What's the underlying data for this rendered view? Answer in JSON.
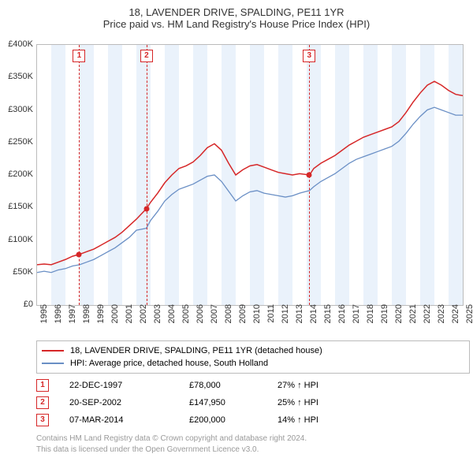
{
  "title": {
    "line1": "18, LAVENDER DRIVE, SPALDING, PE11 1YR",
    "line2": "Price paid vs. HM Land Registry's House Price Index (HPI)",
    "fontsize": 13,
    "color": "#333333"
  },
  "chart": {
    "type": "line",
    "background_color": "#ffffff",
    "plot_border_color": "#bbbbbb",
    "band_color": "#eaf2fb",
    "x": {
      "min": 1995,
      "max": 2025,
      "ticks": [
        1995,
        1996,
        1997,
        1998,
        1999,
        2000,
        2001,
        2002,
        2003,
        2004,
        2005,
        2006,
        2007,
        2008,
        2009,
        2010,
        2011,
        2012,
        2013,
        2014,
        2015,
        2016,
        2017,
        2018,
        2019,
        2020,
        2021,
        2022,
        2023,
        2024,
        2025
      ],
      "label_fontsize": 11
    },
    "y": {
      "min": 0,
      "max": 400000,
      "ticks": [
        0,
        50000,
        100000,
        150000,
        200000,
        250000,
        300000,
        350000,
        400000
      ],
      "tick_labels": [
        "£0",
        "£50K",
        "£100K",
        "£150K",
        "£200K",
        "£250K",
        "£300K",
        "£350K",
        "£400K"
      ],
      "label_fontsize": 11
    },
    "series": [
      {
        "name": "18, LAVENDER DRIVE, SPALDING, PE11 1YR (detached house)",
        "color": "#d62728",
        "line_width": 1.5,
        "data": [
          [
            1995,
            62000
          ],
          [
            1995.5,
            63000
          ],
          [
            1996,
            62000
          ],
          [
            1996.5,
            66000
          ],
          [
            1997,
            70000
          ],
          [
            1997.5,
            75000
          ],
          [
            1998,
            78000
          ],
          [
            1998.5,
            82000
          ],
          [
            1999,
            86000
          ],
          [
            1999.5,
            92000
          ],
          [
            2000,
            98000
          ],
          [
            2000.5,
            104000
          ],
          [
            2001,
            112000
          ],
          [
            2001.5,
            122000
          ],
          [
            2002,
            132000
          ],
          [
            2002.7,
            147950
          ],
          [
            2003,
            158000
          ],
          [
            2003.5,
            172000
          ],
          [
            2004,
            188000
          ],
          [
            2004.5,
            200000
          ],
          [
            2005,
            210000
          ],
          [
            2005.5,
            214000
          ],
          [
            2006,
            220000
          ],
          [
            2006.5,
            230000
          ],
          [
            2007,
            242000
          ],
          [
            2007.5,
            248000
          ],
          [
            2008,
            238000
          ],
          [
            2008.5,
            218000
          ],
          [
            2009,
            200000
          ],
          [
            2009.5,
            208000
          ],
          [
            2010,
            214000
          ],
          [
            2010.5,
            216000
          ],
          [
            2011,
            212000
          ],
          [
            2011.5,
            208000
          ],
          [
            2012,
            204000
          ],
          [
            2012.5,
            202000
          ],
          [
            2013,
            200000
          ],
          [
            2013.5,
            202000
          ],
          [
            2014.2,
            200000
          ],
          [
            2014.5,
            210000
          ],
          [
            2015,
            218000
          ],
          [
            2015.5,
            224000
          ],
          [
            2016,
            230000
          ],
          [
            2016.5,
            238000
          ],
          [
            2017,
            246000
          ],
          [
            2017.5,
            252000
          ],
          [
            2018,
            258000
          ],
          [
            2018.5,
            262000
          ],
          [
            2019,
            266000
          ],
          [
            2019.5,
            270000
          ],
          [
            2020,
            274000
          ],
          [
            2020.5,
            282000
          ],
          [
            2021,
            296000
          ],
          [
            2021.5,
            312000
          ],
          [
            2022,
            326000
          ],
          [
            2022.5,
            338000
          ],
          [
            2023,
            344000
          ],
          [
            2023.5,
            338000
          ],
          [
            2024,
            330000
          ],
          [
            2024.5,
            324000
          ],
          [
            2025,
            322000
          ]
        ]
      },
      {
        "name": "HPI: Average price, detached house, South Holland",
        "color": "#6a8fc5",
        "line_width": 1.3,
        "data": [
          [
            1995,
            50000
          ],
          [
            1995.5,
            52000
          ],
          [
            1996,
            50000
          ],
          [
            1996.5,
            54000
          ],
          [
            1997,
            56000
          ],
          [
            1997.5,
            60000
          ],
          [
            1998,
            62000
          ],
          [
            1998.5,
            66000
          ],
          [
            1999,
            70000
          ],
          [
            1999.5,
            76000
          ],
          [
            2000,
            82000
          ],
          [
            2000.5,
            88000
          ],
          [
            2001,
            96000
          ],
          [
            2001.5,
            104000
          ],
          [
            2002,
            115000
          ],
          [
            2002.7,
            118000
          ],
          [
            2003,
            130000
          ],
          [
            2003.5,
            144000
          ],
          [
            2004,
            160000
          ],
          [
            2004.5,
            170000
          ],
          [
            2005,
            178000
          ],
          [
            2005.5,
            182000
          ],
          [
            2006,
            186000
          ],
          [
            2006.5,
            192000
          ],
          [
            2007,
            198000
          ],
          [
            2007.5,
            200000
          ],
          [
            2008,
            190000
          ],
          [
            2008.5,
            175000
          ],
          [
            2009,
            160000
          ],
          [
            2009.5,
            168000
          ],
          [
            2010,
            174000
          ],
          [
            2010.5,
            176000
          ],
          [
            2011,
            172000
          ],
          [
            2011.5,
            170000
          ],
          [
            2012,
            168000
          ],
          [
            2012.5,
            166000
          ],
          [
            2013,
            168000
          ],
          [
            2013.5,
            172000
          ],
          [
            2014.2,
            176000
          ],
          [
            2014.5,
            182000
          ],
          [
            2015,
            190000
          ],
          [
            2015.5,
            196000
          ],
          [
            2016,
            202000
          ],
          [
            2016.5,
            210000
          ],
          [
            2017,
            218000
          ],
          [
            2017.5,
            224000
          ],
          [
            2018,
            228000
          ],
          [
            2018.5,
            232000
          ],
          [
            2019,
            236000
          ],
          [
            2019.5,
            240000
          ],
          [
            2020,
            244000
          ],
          [
            2020.5,
            252000
          ],
          [
            2021,
            264000
          ],
          [
            2021.5,
            278000
          ],
          [
            2022,
            290000
          ],
          [
            2022.5,
            300000
          ],
          [
            2023,
            304000
          ],
          [
            2023.5,
            300000
          ],
          [
            2024,
            296000
          ],
          [
            2024.5,
            292000
          ],
          [
            2025,
            292000
          ]
        ]
      }
    ],
    "markers": [
      {
        "n": "1",
        "x": 1997.97,
        "date": "22-DEC-1997",
        "price": "£78,000",
        "pct": "27% ↑ HPI",
        "y": 78000
      },
      {
        "n": "2",
        "x": 2002.72,
        "date": "20-SEP-2002",
        "price": "£147,950",
        "pct": "25% ↑ HPI",
        "y": 147950
      },
      {
        "n": "3",
        "x": 2014.18,
        "date": "07-MAR-2014",
        "price": "£200,000",
        "pct": "14% ↑ HPI",
        "y": 200000
      }
    ],
    "marker_color": "#d62728"
  },
  "legend": {
    "border_color": "#bbbbbb",
    "fontsize": 11,
    "items": [
      {
        "color": "#d62728",
        "label": "18, LAVENDER DRIVE, SPALDING, PE11 1YR (detached house)"
      },
      {
        "color": "#6a8fc5",
        "label": "HPI: Average price, detached house, South Holland"
      }
    ]
  },
  "attribution": {
    "line1": "Contains HM Land Registry data © Crown copyright and database right 2024.",
    "line2": "This data is licensed under the Open Government Licence v3.0.",
    "color": "#9a9a9a",
    "fontsize": 10
  }
}
